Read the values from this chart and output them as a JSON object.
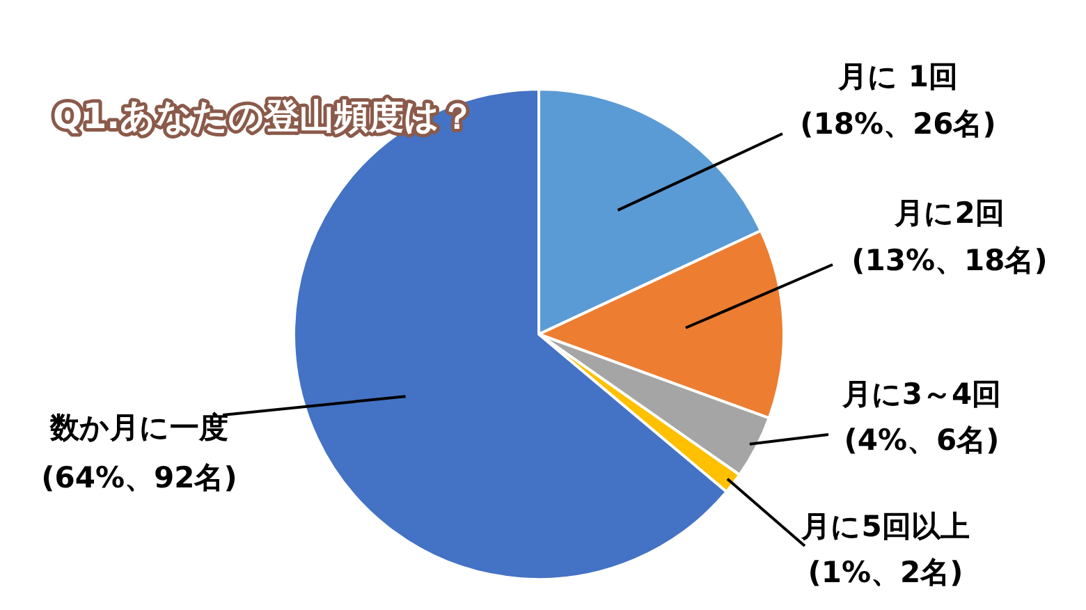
{
  "chart_data": {
    "type": "pie",
    "title": "Q1.あなたの登山頻度は？",
    "categories": [
      "月に 1回",
      "月に2回",
      "月に3～4回",
      "月に5回以上",
      "数か月に一度"
    ],
    "values": [
      26,
      18,
      6,
      2,
      92
    ],
    "value_labels": [
      "(18%、26名)",
      "(13%、18名)",
      "(4%、6名)",
      "(1%、2名)",
      "(64%、92名)"
    ],
    "colors": [
      "#5b9bd5",
      "#ed7d31",
      "#a5a5a5",
      "#ffc000",
      "#4472c4"
    ]
  }
}
